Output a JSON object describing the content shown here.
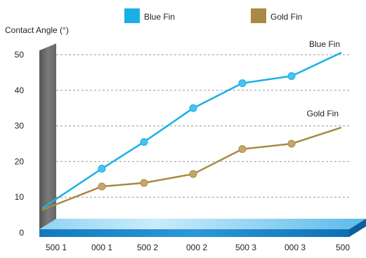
{
  "chart_data": {
    "type": "line",
    "ylabel": "Contact Angle (°)",
    "categories": [
      "500 1",
      "000 1",
      "500 2",
      "000 2",
      "500 3",
      "000 3",
      "500"
    ],
    "ylim": [
      0,
      50
    ],
    "yticks": [
      0,
      10,
      20,
      30,
      40,
      50
    ],
    "grid": "horizontal-dashed",
    "legend_placement": "top",
    "series": [
      {
        "name": "Blue Fin",
        "color": "#1ab0e6",
        "marker_color": "#47c3ef",
        "line_start": 7,
        "points": [
          18,
          25.5,
          35,
          42,
          44
        ],
        "line_end": 50.5
      },
      {
        "name": "Gold Fin",
        "color": "#a88a44",
        "marker_color": "#c4a66a",
        "line_start": 6.5,
        "points": [
          13,
          14,
          16.5,
          23.5,
          25
        ],
        "line_end": 29.5
      }
    ],
    "legend": [
      {
        "label": "Blue Fin",
        "color": "#1ab0e6"
      },
      {
        "label": "Gold Fin",
        "color": "#a88a44"
      }
    ]
  }
}
